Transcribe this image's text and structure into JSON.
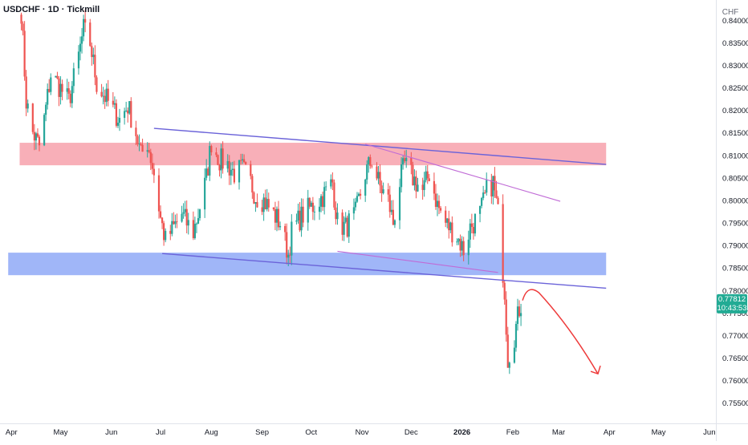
{
  "header": {
    "symbol_label": "USDCHF · 1D · Tickmill"
  },
  "price_axis": {
    "currency_label": "CHF",
    "last_price_label": "0.77812",
    "countdown_label": "10:43:53",
    "last_price_color": "#22ab94"
  },
  "chart_data": {
    "type": "candlestick",
    "title": "USDCHF · 1D · Tickmill",
    "xlabel": "",
    "ylabel": "",
    "ylim": [
      0.7505,
      0.8445
    ],
    "xlim": [
      "2025-03-25",
      "2026-06-05"
    ],
    "y_ticks": [
      "0.75500",
      "0.76000",
      "0.76500",
      "0.77000",
      "0.77500",
      "0.78000",
      "0.78500",
      "0.79000",
      "0.79500",
      "0.80000",
      "0.80500",
      "0.81000",
      "0.81500",
      "0.82000",
      "0.82500",
      "0.83000",
      "0.83500",
      "0.84000"
    ],
    "x_ticks": [
      {
        "label": "Apr",
        "date": "2025-04-01",
        "bold": false
      },
      {
        "label": "May",
        "date": "2025-05-01",
        "bold": false
      },
      {
        "label": "Jun",
        "date": "2025-06-01",
        "bold": false
      },
      {
        "label": "Jul",
        "date": "2025-07-01",
        "bold": false
      },
      {
        "label": "Aug",
        "date": "2025-08-01",
        "bold": false
      },
      {
        "label": "Sep",
        "date": "2025-09-01",
        "bold": false
      },
      {
        "label": "Oct",
        "date": "2025-10-01",
        "bold": false
      },
      {
        "label": "Nov",
        "date": "2025-11-01",
        "bold": false
      },
      {
        "label": "Dec",
        "date": "2025-12-01",
        "bold": false
      },
      {
        "label": "2026",
        "date": "2026-01-01",
        "bold": true
      },
      {
        "label": "Feb",
        "date": "2026-02-01",
        "bold": false
      },
      {
        "label": "Mar",
        "date": "2026-03-01",
        "bold": false
      },
      {
        "label": "Apr",
        "date": "2026-04-01",
        "bold": false
      },
      {
        "label": "May",
        "date": "2026-05-01",
        "bold": false
      },
      {
        "label": "Jun",
        "date": "2026-06-01",
        "bold": false
      }
    ],
    "close_path": [
      [
        "2025-04-07",
        0.842
      ],
      [
        "2025-04-10",
        0.822
      ],
      [
        "2025-04-14",
        0.815
      ],
      [
        "2025-04-18",
        0.812
      ],
      [
        "2025-04-21",
        0.818
      ],
      [
        "2025-04-25",
        0.828
      ],
      [
        "2025-04-29",
        0.826
      ],
      [
        "2025-05-06",
        0.822
      ],
      [
        "2025-05-12",
        0.832
      ],
      [
        "2025-05-15",
        0.838
      ],
      [
        "2025-05-19",
        0.835
      ],
      [
        "2025-05-23",
        0.826
      ],
      [
        "2025-05-28",
        0.823
      ],
      [
        "2025-06-02",
        0.82
      ],
      [
        "2025-06-06",
        0.818
      ],
      [
        "2025-06-11",
        0.821
      ],
      [
        "2025-06-16",
        0.815
      ],
      [
        "2025-06-19",
        0.81
      ],
      [
        "2025-06-23",
        0.813
      ],
      [
        "2025-06-27",
        0.806
      ],
      [
        "2025-07-01",
        0.796
      ],
      [
        "2025-07-04",
        0.791
      ],
      [
        "2025-07-09",
        0.794
      ],
      [
        "2025-07-14",
        0.797
      ],
      [
        "2025-07-17",
        0.795
      ],
      [
        "2025-07-21",
        0.793
      ],
      [
        "2025-07-24",
        0.797
      ],
      [
        "2025-07-29",
        0.805
      ],
      [
        "2025-08-01",
        0.813
      ],
      [
        "2025-08-06",
        0.809
      ],
      [
        "2025-08-11",
        0.808
      ],
      [
        "2025-08-15",
        0.806
      ],
      [
        "2025-08-20",
        0.807
      ],
      [
        "2025-08-25",
        0.804
      ],
      [
        "2025-08-28",
        0.801
      ],
      [
        "2025-09-02",
        0.8
      ],
      [
        "2025-09-08",
        0.797
      ],
      [
        "2025-09-12",
        0.795
      ],
      [
        "2025-09-17",
        0.788
      ],
      [
        "2025-09-19",
        0.793
      ],
      [
        "2025-09-24",
        0.796
      ],
      [
        "2025-09-29",
        0.798
      ],
      [
        "2025-10-03",
        0.799
      ],
      [
        "2025-10-08",
        0.801
      ],
      [
        "2025-10-14",
        0.804
      ],
      [
        "2025-10-17",
        0.795
      ],
      [
        "2025-10-22",
        0.794
      ],
      [
        "2025-10-28",
        0.797
      ],
      [
        "2025-11-03",
        0.806
      ],
      [
        "2025-11-07",
        0.809
      ],
      [
        "2025-11-12",
        0.803
      ],
      [
        "2025-11-17",
        0.8
      ],
      [
        "2025-11-20",
        0.795
      ],
      [
        "2025-11-24",
        0.804
      ],
      [
        "2025-11-27",
        0.808
      ],
      [
        "2025-12-02",
        0.805
      ],
      [
        "2025-12-08",
        0.802
      ],
      [
        "2025-12-12",
        0.806
      ],
      [
        "2025-12-17",
        0.799
      ],
      [
        "2025-12-22",
        0.795
      ],
      [
        "2025-12-29",
        0.792
      ],
      [
        "2026-01-02",
        0.789
      ],
      [
        "2026-01-06",
        0.794
      ],
      [
        "2026-01-12",
        0.797
      ],
      [
        "2026-01-16",
        0.802
      ],
      [
        "2026-01-20",
        0.804
      ],
      [
        "2026-01-23",
        0.797
      ],
      [
        "2026-01-27",
        0.78
      ],
      [
        "2026-01-29",
        0.765
      ],
      [
        "2026-02-02",
        0.77
      ],
      [
        "2026-02-05",
        0.776
      ],
      [
        "2026-02-07",
        0.778
      ]
    ],
    "zones": [
      {
        "name": "resistance-zone",
        "y_low": 0.8078,
        "y_high": 0.8128,
        "x_start": "2025-04-06",
        "x_end": "2026-03-30",
        "color": "#f7a1ab"
      },
      {
        "name": "support-zone",
        "y_low": 0.7834,
        "y_high": 0.7884,
        "x_start": "2025-03-30",
        "x_end": "2026-03-30",
        "color": "#8fa9f7"
      }
    ],
    "trendlines": [
      {
        "name": "upper-channel-line",
        "x1": "2025-06-27",
        "y1": 0.816,
        "x2": "2026-03-30",
        "y2": 0.808,
        "color": "#6b63d9",
        "width": 1.4
      },
      {
        "name": "lower-channel-line",
        "x1": "2025-07-02",
        "y1": 0.7882,
        "x2": "2026-03-30",
        "y2": 0.7805,
        "color": "#6b63d9",
        "width": 1.4
      },
      {
        "name": "descending-resistance-line",
        "x1": "2025-11-03",
        "y1": 0.8125,
        "x2": "2026-03-02",
        "y2": 0.7998,
        "color": "#c06bd6",
        "width": 1.1
      },
      {
        "name": "lower-wedge-line",
        "x1": "2025-10-17",
        "y1": 0.7887,
        "x2": "2026-01-23",
        "y2": 0.784,
        "color": "#c06bd6",
        "width": 1.1
      }
    ],
    "projection_arrow": {
      "points": [
        [
          "2026-02-07",
          0.7778
        ],
        [
          "2026-02-10",
          0.7815
        ],
        [
          "2026-02-17",
          0.7795
        ],
        [
          "2026-03-08",
          0.772
        ],
        [
          "2026-03-25",
          0.7615
        ]
      ],
      "color": "#ee3a3a"
    },
    "last_price": 0.77812
  }
}
